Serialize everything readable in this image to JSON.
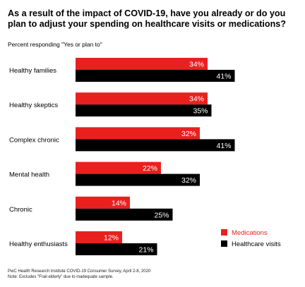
{
  "title": "As a result of the impact of COVID-19, have you already or do you plan to adjust your spending on healthcare visits or medications?",
  "subtitle": "Percent responding \"Yes or plan to\"",
  "source": "PwC Health Research Institute COVID-19 Consumer Survey, April 2-8, 2020",
  "note": "Note: Excludes \"Frail elderly\" due to inadequate sample.",
  "colors": {
    "medications": "#e8211f",
    "healthcare_visits": "#000000"
  },
  "chart_data": {
    "type": "bar",
    "orientation": "horizontal",
    "title": "As a result of the impact of COVID-19, have you already or do you plan to adjust your spending on healthcare visits or medications?",
    "subtitle": "Percent responding \"Yes or plan to\"",
    "categories": [
      "Healthy families",
      "Healthy skeptics",
      "Complex chronic",
      "Mental health",
      "Chronic",
      "Healthy enthusiasts"
    ],
    "series": [
      {
        "name": "Medications",
        "values": [
          34,
          34,
          32,
          22,
          14,
          12
        ]
      },
      {
        "name": "Healthcare visits",
        "values": [
          41,
          35,
          41,
          32,
          25,
          21
        ]
      }
    ],
    "value_suffix": "%",
    "xlim": [
      0,
      45
    ],
    "grid": false,
    "legend_position": "right"
  }
}
